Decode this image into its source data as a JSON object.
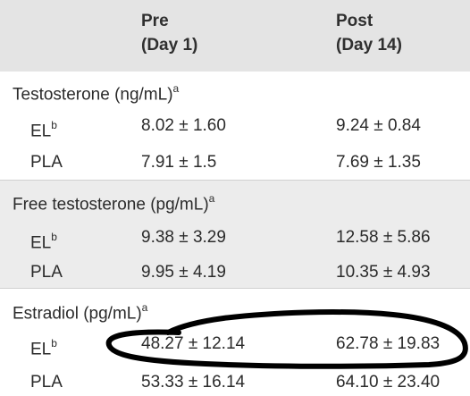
{
  "header": {
    "col_pre_line1": "Pre",
    "col_pre_line2": "(Day 1)",
    "col_post_line1": "Post",
    "col_post_line2": "(Day 14)"
  },
  "sections": [
    {
      "title": "Testosterone (ng/mL)",
      "title_sup": "a",
      "rows": [
        {
          "group": "EL",
          "group_sup": "b",
          "pre": "8.02 ± 1.60",
          "post": "9.24 ± 0.84"
        },
        {
          "group": "PLA",
          "group_sup": "",
          "pre": "7.91 ± 1.5",
          "post": "7.69 ± 1.35"
        }
      ]
    },
    {
      "title": "Free testosterone (pg/mL)",
      "title_sup": "a",
      "rows": [
        {
          "group": "EL",
          "group_sup": "b",
          "pre": "9.38 ± 3.29",
          "post": "12.58 ± 5.86"
        },
        {
          "group": "PLA",
          "group_sup": "",
          "pre": "9.95 ± 4.19",
          "post": "10.35 ± 4.93"
        }
      ]
    },
    {
      "title": "Estradiol (pg/mL)",
      "title_sup": "a",
      "rows": [
        {
          "group": "EL",
          "group_sup": "b",
          "pre": "48.27 ± 12.14",
          "post": "62.78 ± 19.83"
        },
        {
          "group": "PLA",
          "group_sup": "",
          "pre": "53.33 ± 16.14",
          "post": "64.10 ± 23.40"
        }
      ]
    }
  ],
  "annotation": {
    "type": "hand-drawn loop around the Estradiol EL row",
    "stroke_color": "#000000"
  }
}
